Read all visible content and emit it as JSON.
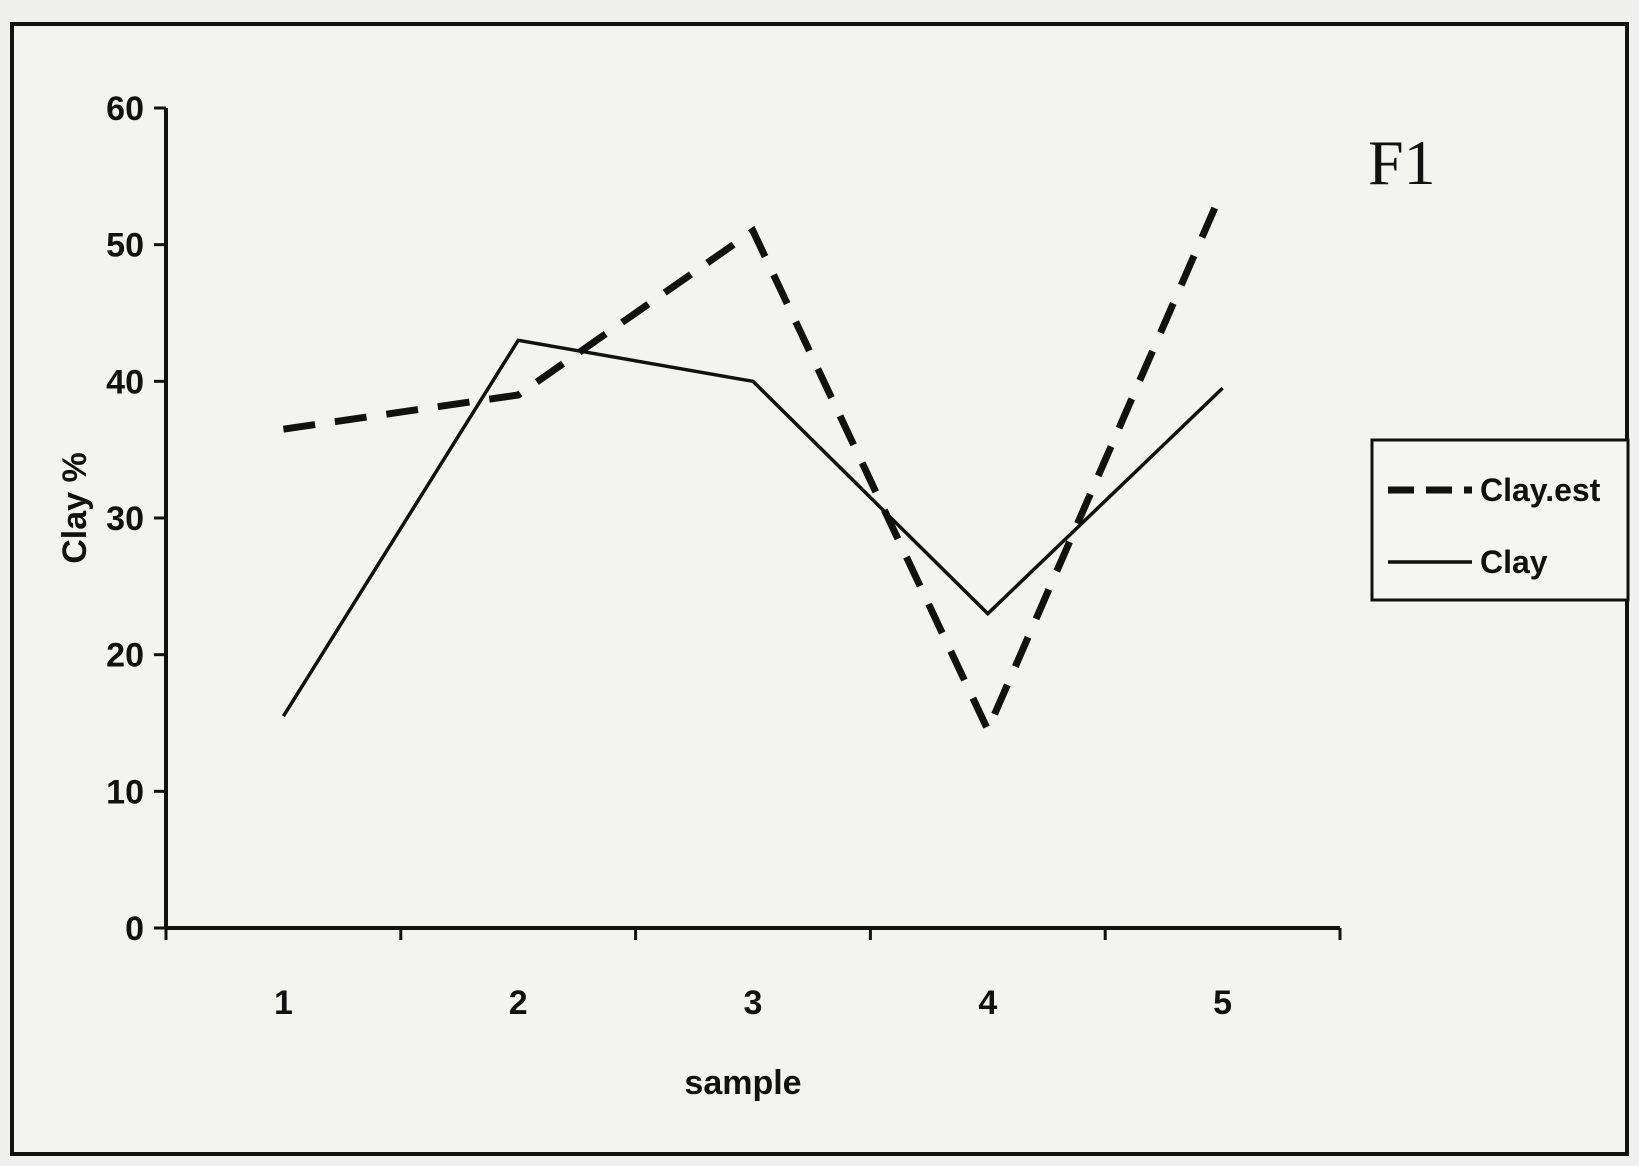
{
  "chart_data": {
    "type": "line",
    "title": "",
    "panel_label": "F1",
    "xlabel": "sample",
    "ylabel": "Clay %",
    "categories": [
      "1",
      "2",
      "3",
      "4",
      "5"
    ],
    "yticks": [
      "0",
      "10",
      "20",
      "30",
      "40",
      "50",
      "60"
    ],
    "ylim": [
      0,
      60
    ],
    "grid": false,
    "legend_position": "right",
    "series": [
      {
        "name": "Clay.est",
        "style": "dashed",
        "values": [
          36.5,
          39,
          51,
          14.5,
          54
        ]
      },
      {
        "name": "Clay",
        "style": "solid",
        "values": [
          15.5,
          43,
          40,
          23,
          39.5
        ]
      }
    ],
    "line_color": "#111111",
    "background_color": "#f3f3f1"
  }
}
